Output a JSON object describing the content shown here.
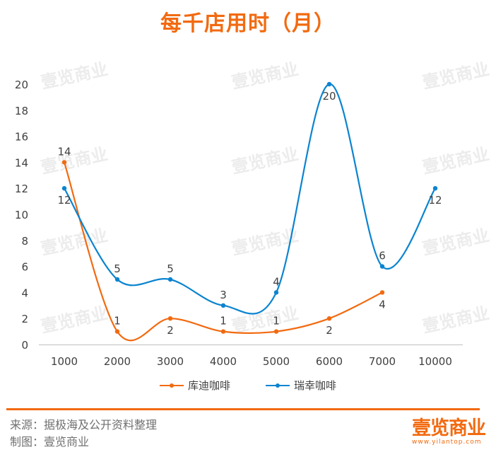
{
  "chart_data": {
    "type": "line",
    "title": "每千店用时（月）",
    "categories": [
      "1000",
      "2000",
      "3000",
      "4000",
      "5000",
      "6000",
      "7000",
      "10000"
    ],
    "ylim": [
      0,
      20
    ],
    "yticks": [
      0,
      2,
      4,
      6,
      8,
      10,
      12,
      14,
      16,
      18,
      20
    ],
    "xlabel": "",
    "ylabel": "",
    "grid": false,
    "legend_position": "bottom",
    "series": [
      {
        "name": "库迪咖啡",
        "color": "#f26a10",
        "values": [
          14,
          1,
          2,
          1,
          1,
          2,
          4,
          null
        ],
        "label_pos": [
          "above",
          "above",
          "below",
          "above",
          "above",
          "below",
          "below",
          null
        ]
      },
      {
        "name": "瑞幸咖啡",
        "color": "#0b84d0",
        "values": [
          12,
          5,
          5,
          3,
          4,
          20,
          6,
          12
        ],
        "label_pos": [
          "below",
          "above",
          "above",
          "above",
          "above",
          "below",
          "above",
          "below"
        ]
      }
    ]
  },
  "watermark": "壹览商业",
  "footer": {
    "source": "来源：据极海及公开资料整理",
    "made_by": "制图：壹览商业",
    "logo": "壹览商业",
    "url": "www.yilantop.com"
  }
}
